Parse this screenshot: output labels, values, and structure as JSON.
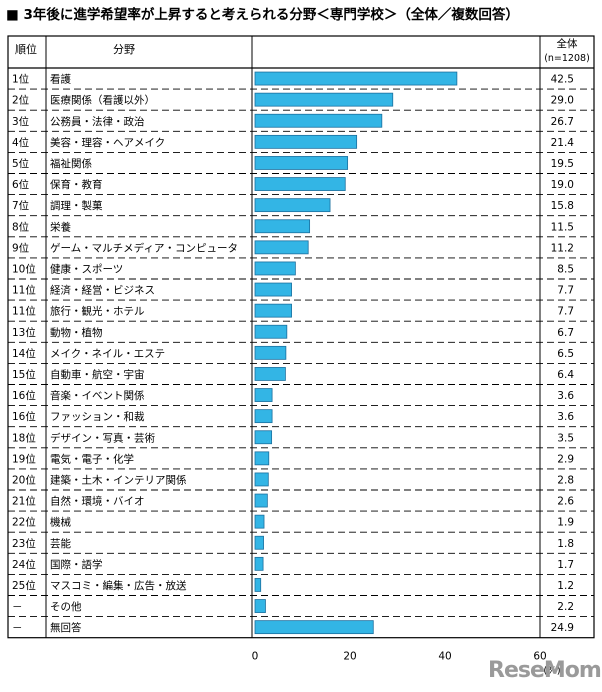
{
  "title": "■ 3年後に進学希望率が上昇すると考えられる分野＜専門学校＞（全体／複数回答）",
  "table": {
    "rank_header": "順位",
    "field_header": "分野",
    "total_header": "全体",
    "n_label": "(n=1208)"
  },
  "chart_data": {
    "type": "bar",
    "orientation": "horizontal",
    "series": [
      {
        "name": "全体",
        "color": "#33b5e5"
      }
    ],
    "xlim": [
      0,
      60
    ],
    "x_ticks": [
      "0",
      "20",
      "40",
      "60"
    ],
    "x_unit": "(%)",
    "rows": [
      {
        "rank": "1位",
        "label": "看護",
        "value": 42.5,
        "text": "42.5"
      },
      {
        "rank": "2位",
        "label": "医療関係（看護以外）",
        "value": 29.0,
        "text": "29.0"
      },
      {
        "rank": "3位",
        "label": "公務員・法律・政治",
        "value": 26.7,
        "text": "26.7"
      },
      {
        "rank": "4位",
        "label": "美容・理容・ヘアメイク",
        "value": 21.4,
        "text": "21.4"
      },
      {
        "rank": "5位",
        "label": "福祉関係",
        "value": 19.5,
        "text": "19.5"
      },
      {
        "rank": "6位",
        "label": "保育・教育",
        "value": 19.0,
        "text": "19.0"
      },
      {
        "rank": "7位",
        "label": "調理・製菓",
        "value": 15.8,
        "text": "15.8"
      },
      {
        "rank": "8位",
        "label": "栄養",
        "value": 11.5,
        "text": "11.5"
      },
      {
        "rank": "9位",
        "label": "ゲーム・マルチメディア・コンピュータ",
        "value": 11.2,
        "text": "11.2"
      },
      {
        "rank": "10位",
        "label": "健康・スポーツ",
        "value": 8.5,
        "text": "8.5"
      },
      {
        "rank": "11位",
        "label": "経済・経営・ビジネス",
        "value": 7.7,
        "text": "7.7"
      },
      {
        "rank": "11位",
        "label": "旅行・観光・ホテル",
        "value": 7.7,
        "text": "7.7"
      },
      {
        "rank": "13位",
        "label": "動物・植物",
        "value": 6.7,
        "text": "6.7"
      },
      {
        "rank": "14位",
        "label": "メイク・ネイル・エステ",
        "value": 6.5,
        "text": "6.5"
      },
      {
        "rank": "15位",
        "label": "自動車・航空・宇宙",
        "value": 6.4,
        "text": "6.4"
      },
      {
        "rank": "16位",
        "label": "音楽・イベント関係",
        "value": 3.6,
        "text": "3.6"
      },
      {
        "rank": "16位",
        "label": "ファッション・和裁",
        "value": 3.6,
        "text": "3.6"
      },
      {
        "rank": "18位",
        "label": "デザイン・写真・芸術",
        "value": 3.5,
        "text": "3.5"
      },
      {
        "rank": "19位",
        "label": "電気・電子・化学",
        "value": 2.9,
        "text": "2.9"
      },
      {
        "rank": "20位",
        "label": "建築・土木・インテリア関係",
        "value": 2.8,
        "text": "2.8"
      },
      {
        "rank": "21位",
        "label": "自然・環境・バイオ",
        "value": 2.6,
        "text": "2.6"
      },
      {
        "rank": "22位",
        "label": "機械",
        "value": 1.9,
        "text": "1.9"
      },
      {
        "rank": "23位",
        "label": "芸能",
        "value": 1.8,
        "text": "1.8"
      },
      {
        "rank": "24位",
        "label": "国際・語学",
        "value": 1.7,
        "text": "1.7"
      },
      {
        "rank": "25位",
        "label": "マスコミ・編集・広告・放送",
        "value": 1.2,
        "text": "1.2"
      },
      {
        "rank": "－",
        "label": "その他",
        "value": 2.2,
        "text": "2.2"
      },
      {
        "rank": "－",
        "label": "無回答",
        "value": 24.9,
        "text": "24.9"
      }
    ]
  },
  "watermark": "ReseMom"
}
